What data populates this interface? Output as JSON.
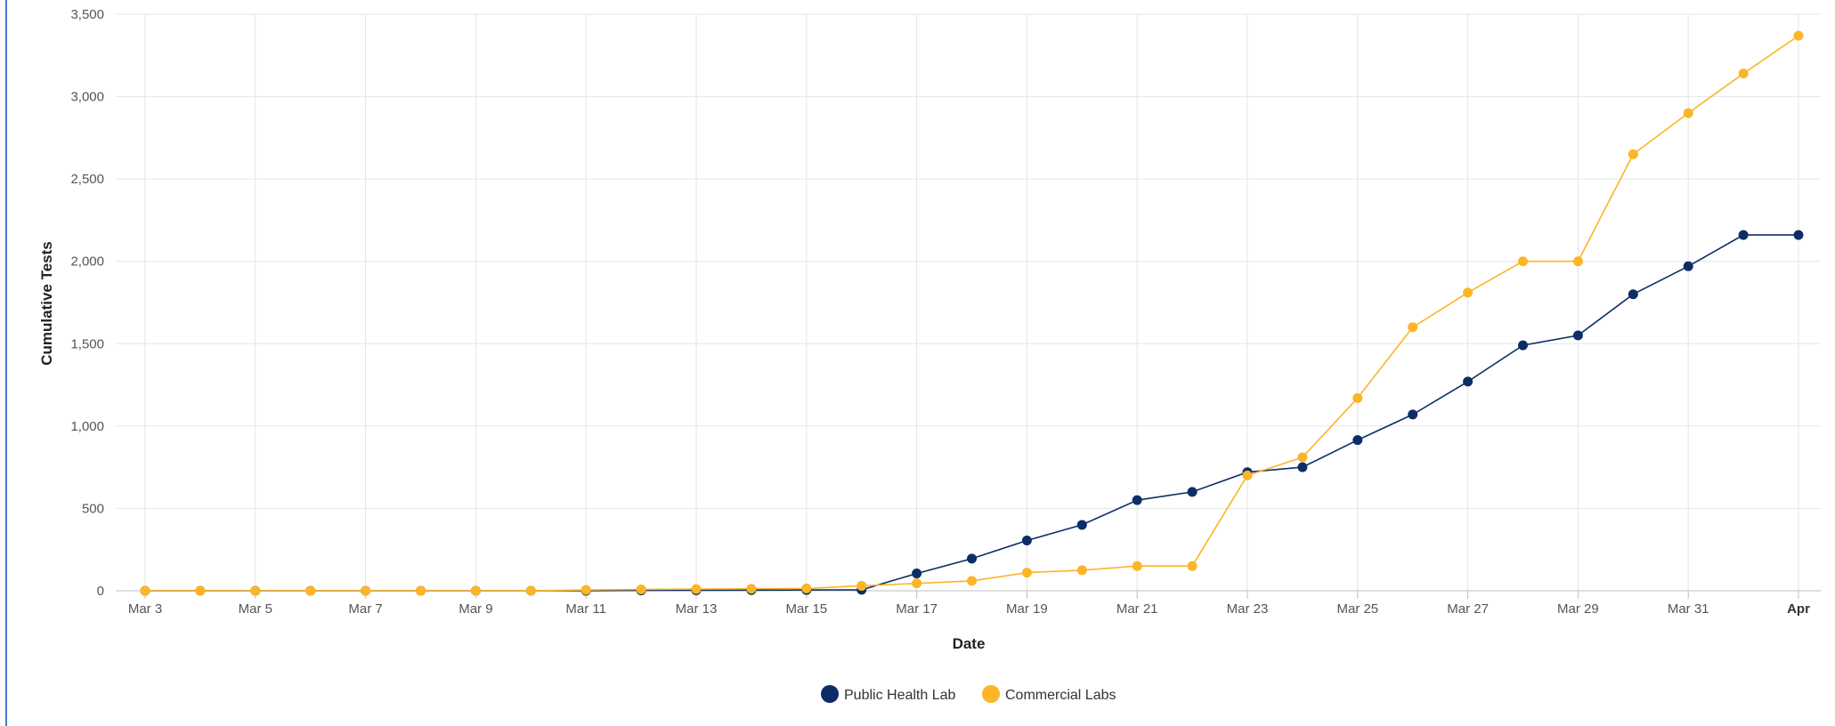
{
  "chart_data": {
    "type": "line",
    "title": "",
    "xlabel": "Date",
    "ylabel": "Cumulative Tests",
    "ylim": [
      0,
      3500
    ],
    "y_ticks": [
      "0",
      "500",
      "1,000",
      "1,500",
      "2,000",
      "2,500",
      "3,000",
      "3,500"
    ],
    "x_tick_labels": [
      "Mar 3",
      "Mar 5",
      "Mar 7",
      "Mar 9",
      "Mar 11",
      "Mar 13",
      "Mar 15",
      "Mar 17",
      "Mar 19",
      "Mar 21",
      "Mar 23",
      "Mar 25",
      "Mar 27",
      "Mar 29",
      "Mar 31",
      "Apr"
    ],
    "x": [
      "Mar 3",
      "Mar 4",
      "Mar 5",
      "Mar 6",
      "Mar 7",
      "Mar 8",
      "Mar 9",
      "Mar 10",
      "Mar 11",
      "Mar 12",
      "Mar 13",
      "Mar 14",
      "Mar 15",
      "Mar 16",
      "Mar 17",
      "Mar 18",
      "Mar 19",
      "Mar 20",
      "Mar 21",
      "Mar 22",
      "Mar 23",
      "Mar 24",
      "Mar 25",
      "Mar 26",
      "Mar 27",
      "Mar 28",
      "Mar 29",
      "Mar 30",
      "Mar 31",
      "Apr 1",
      "Apr 2"
    ],
    "grid": true,
    "legend_position": "bottom-center",
    "series": [
      {
        "name": "Public Health Lab",
        "color": "#0d2d66",
        "values": [
          0,
          0,
          0,
          0,
          0,
          0,
          0,
          0,
          0,
          2,
          3,
          4,
          5,
          6,
          105,
          195,
          305,
          400,
          550,
          600,
          720,
          750,
          915,
          1070,
          1270,
          1490,
          1550,
          1800,
          1970,
          2160,
          2160
        ]
      },
      {
        "name": "Commercial Labs",
        "color": "#fbb526",
        "values": [
          0,
          0,
          0,
          0,
          0,
          0,
          0,
          0,
          5,
          8,
          10,
          12,
          14,
          30,
          45,
          60,
          110,
          125,
          150,
          150,
          700,
          810,
          1170,
          1600,
          1810,
          2000,
          2000,
          2650,
          2900,
          3140,
          3370
        ]
      }
    ]
  }
}
